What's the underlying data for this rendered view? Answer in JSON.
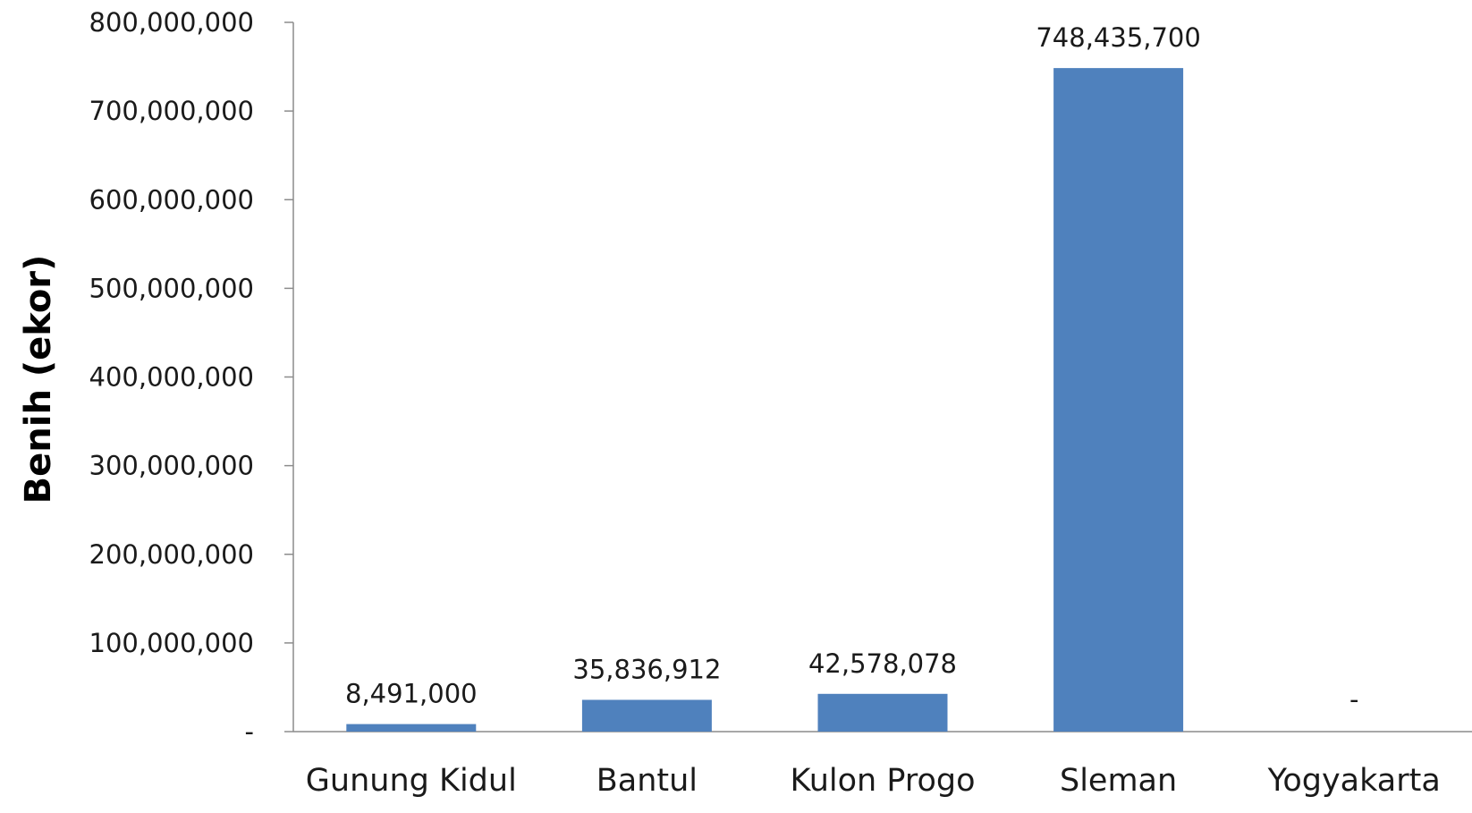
{
  "chart_data": {
    "type": "bar",
    "title": "",
    "xlabel": "",
    "ylabel": "Benih (ekor)",
    "ylim": [
      0,
      800000000
    ],
    "yticks": [
      0,
      100000000,
      200000000,
      300000000,
      400000000,
      500000000,
      600000000,
      700000000,
      800000000
    ],
    "ytick_labels": [
      "-",
      "100,000,000",
      "200,000,000",
      "300,000,000",
      "400,000,000",
      "500,000,000",
      "600,000,000",
      "700,000,000",
      "800,000,000"
    ],
    "categories": [
      "Gunung Kidul",
      "Bantul",
      "Kulon Progo",
      "Sleman",
      "Yogyakarta"
    ],
    "values": [
      8491000,
      35836912,
      42578078,
      748435700,
      0
    ],
    "data_labels": [
      "8,491,000",
      "35,836,912",
      "42,578,078",
      "748,435,700",
      "-"
    ],
    "bar_color": "#4f81bd",
    "grid": false,
    "legend": "none"
  }
}
